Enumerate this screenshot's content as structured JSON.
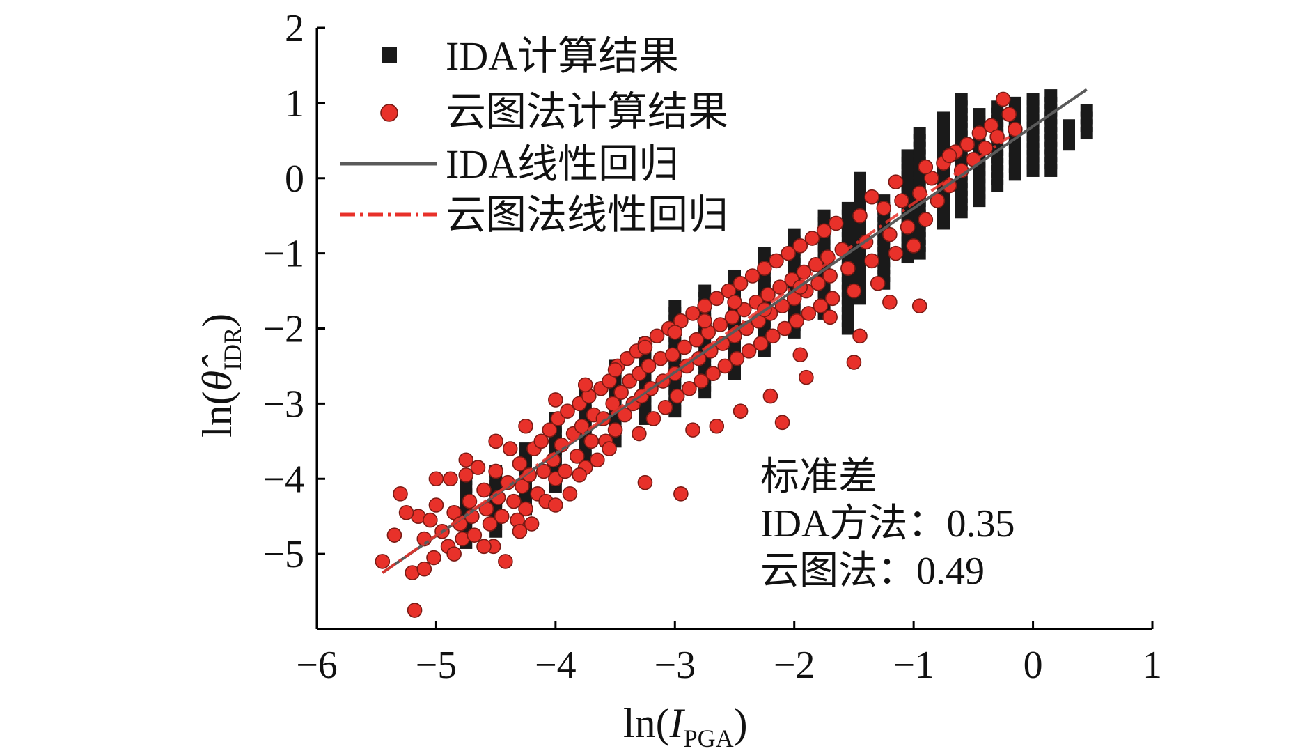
{
  "chart_data": {
    "type": "scatter",
    "title": "",
    "xlabel": {
      "prefix": "ln(",
      "var": "I",
      "sub": "PGA",
      "suffix": ")"
    },
    "ylabel": {
      "prefix": "ln(",
      "var": "θ̂",
      "sub": "IDR",
      "suffix": ")"
    },
    "xlim": [
      -6,
      1
    ],
    "ylim": [
      -6,
      2
    ],
    "xticks": [
      -6,
      -5,
      -4,
      -3,
      -2,
      -1,
      0,
      1
    ],
    "yticks": [
      -5,
      -4,
      -3,
      -2,
      -1,
      0,
      1,
      2
    ],
    "xtick_labels": [
      "−6",
      "−5",
      "−4",
      "−3",
      "−2",
      "−1",
      "0",
      "1"
    ],
    "ytick_labels": [
      "−5",
      "−4",
      "−3",
      "−2",
      "−1",
      "0",
      "1",
      "2"
    ],
    "grid": false,
    "legend_position": "top-left",
    "legend": [
      {
        "label": "IDA计算结果",
        "kind": "square",
        "color": "#1a1a1a"
      },
      {
        "label": "云图法计算结果",
        "kind": "circle",
        "color": "#e8312a"
      },
      {
        "label": "IDA线性回归",
        "kind": "line",
        "color": "#5a5a5a"
      },
      {
        "label": "云图法线性回归",
        "kind": "dashdot",
        "color": "#e8312a"
      }
    ],
    "annotation": {
      "title": "标准差",
      "lines": [
        "IDA方法：0.35",
        "云图法：0.49"
      ]
    },
    "series": [
      {
        "name": "IDA计算结果",
        "marker": "square",
        "color": "#1a1a1a",
        "columns": [
          {
            "x": -4.75,
            "y_min": -4.85,
            "y_max": -4.0
          },
          {
            "x": -4.5,
            "y_min": -4.7,
            "y_max": -3.9
          },
          {
            "x": -4.25,
            "y_min": -4.4,
            "y_max": -3.6
          },
          {
            "x": -4.0,
            "y_min": -4.1,
            "y_max": -3.2
          },
          {
            "x": -3.75,
            "y_min": -3.8,
            "y_max": -2.8
          },
          {
            "x": -3.5,
            "y_min": -3.5,
            "y_max": -2.5
          },
          {
            "x": -3.25,
            "y_min": -3.2,
            "y_max": -2.2
          },
          {
            "x": -3.0,
            "y_min": -3.1,
            "y_max": -1.7
          },
          {
            "x": -2.75,
            "y_min": -2.85,
            "y_max": -1.5
          },
          {
            "x": -2.5,
            "y_min": -2.6,
            "y_max": -1.3
          },
          {
            "x": -2.25,
            "y_min": -2.3,
            "y_max": -1.0
          },
          {
            "x": -2.0,
            "y_min": -2.05,
            "y_max": -0.75
          },
          {
            "x": -1.75,
            "y_min": -1.8,
            "y_max": -0.5
          },
          {
            "x": -1.55,
            "y_min": -2.0,
            "y_max": -0.4
          },
          {
            "x": -1.45,
            "y_min": -1.6,
            "y_max": 0.0
          },
          {
            "x": -1.25,
            "y_min": -1.4,
            "y_max": -0.3
          },
          {
            "x": -1.05,
            "y_min": -1.05,
            "y_max": 0.3
          },
          {
            "x": -0.95,
            "y_min": -1.0,
            "y_max": 0.6
          },
          {
            "x": -0.75,
            "y_min": -0.6,
            "y_max": 0.8
          },
          {
            "x": -0.6,
            "y_min": -0.45,
            "y_max": 1.05
          },
          {
            "x": -0.45,
            "y_min": -0.3,
            "y_max": 0.85
          },
          {
            "x": -0.3,
            "y_min": -0.1,
            "y_max": 0.95
          },
          {
            "x": -0.15,
            "y_min": 0.05,
            "y_max": 1.0
          },
          {
            "x": 0.0,
            "y_min": 0.1,
            "y_max": 1.05
          },
          {
            "x": 0.15,
            "y_min": 0.1,
            "y_max": 1.1
          },
          {
            "x": 0.3,
            "y_min": 0.45,
            "y_max": 0.7
          },
          {
            "x": 0.45,
            "y_min": 0.6,
            "y_max": 0.9
          }
        ]
      },
      {
        "name": "云图法计算结果",
        "marker": "circle",
        "color": "#e8312a",
        "points": [
          [
            -5.45,
            -5.1
          ],
          [
            -5.35,
            -4.75
          ],
          [
            -5.3,
            -4.2
          ],
          [
            -5.2,
            -5.25
          ],
          [
            -5.18,
            -5.75
          ],
          [
            -5.15,
            -4.5
          ],
          [
            -5.1,
            -4.8
          ],
          [
            -5.05,
            -4.55
          ],
          [
            -5.02,
            -5.05
          ],
          [
            -5.0,
            -4.35
          ],
          [
            -4.95,
            -4.7
          ],
          [
            -4.9,
            -4.9
          ],
          [
            -4.88,
            -4.0
          ],
          [
            -4.85,
            -4.45
          ],
          [
            -4.8,
            -4.6
          ],
          [
            -4.78,
            -4.8
          ],
          [
            -4.75,
            -3.95
          ],
          [
            -4.72,
            -4.3
          ],
          [
            -4.7,
            -4.5
          ],
          [
            -4.68,
            -4.75
          ],
          [
            -4.65,
            -3.85
          ],
          [
            -4.6,
            -4.15
          ],
          [
            -4.58,
            -4.4
          ],
          [
            -4.55,
            -4.6
          ],
          [
            -4.52,
            -4.9
          ],
          [
            -4.5,
            -3.9
          ],
          [
            -4.48,
            -4.25
          ],
          [
            -4.45,
            -4.5
          ],
          [
            -4.42,
            -5.1
          ],
          [
            -4.4,
            -4.05
          ],
          [
            -4.38,
            -3.6
          ],
          [
            -4.35,
            -4.3
          ],
          [
            -4.32,
            -4.55
          ],
          [
            -4.3,
            -3.8
          ],
          [
            -4.28,
            -4.1
          ],
          [
            -4.25,
            -4.4
          ],
          [
            -4.22,
            -3.95
          ],
          [
            -4.2,
            -4.6
          ],
          [
            -4.18,
            -3.6
          ],
          [
            -4.15,
            -4.2
          ],
          [
            -4.12,
            -3.5
          ],
          [
            -4.1,
            -3.9
          ],
          [
            -4.08,
            -4.3
          ],
          [
            -4.05,
            -3.35
          ],
          [
            -4.02,
            -3.75
          ],
          [
            -4.0,
            -4.0
          ],
          [
            -3.98,
            -3.2
          ],
          [
            -3.95,
            -3.55
          ],
          [
            -3.92,
            -3.9
          ],
          [
            -3.9,
            -3.1
          ],
          [
            -3.88,
            -4.2
          ],
          [
            -3.85,
            -3.4
          ],
          [
            -3.82,
            -3.7
          ],
          [
            -3.8,
            -3.0
          ],
          [
            -3.78,
            -3.3
          ],
          [
            -3.75,
            -3.85
          ],
          [
            -3.72,
            -2.9
          ],
          [
            -3.7,
            -3.5
          ],
          [
            -3.68,
            -3.15
          ],
          [
            -3.65,
            -3.75
          ],
          [
            -3.62,
            -2.8
          ],
          [
            -3.6,
            -3.2
          ],
          [
            -3.58,
            -3.5
          ],
          [
            -3.55,
            -2.7
          ],
          [
            -3.52,
            -3.0
          ],
          [
            -3.5,
            -3.35
          ],
          [
            -3.48,
            -2.5
          ],
          [
            -3.45,
            -2.85
          ],
          [
            -3.42,
            -3.15
          ],
          [
            -3.4,
            -2.4
          ],
          [
            -3.38,
            -2.7
          ],
          [
            -3.35,
            -3.0
          ],
          [
            -3.32,
            -2.3
          ],
          [
            -3.3,
            -2.6
          ],
          [
            -3.28,
            -2.9
          ],
          [
            -3.25,
            -2.2
          ],
          [
            -3.22,
            -2.5
          ],
          [
            -3.2,
            -2.8
          ],
          [
            -3.18,
            -3.2
          ],
          [
            -3.15,
            -2.1
          ],
          [
            -3.12,
            -2.4
          ],
          [
            -3.1,
            -2.7
          ],
          [
            -3.08,
            -3.05
          ],
          [
            -3.05,
            -2.0
          ],
          [
            -3.02,
            -2.35
          ],
          [
            -3.0,
            -2.6
          ],
          [
            -2.98,
            -2.9
          ],
          [
            -2.95,
            -1.9
          ],
          [
            -2.92,
            -2.25
          ],
          [
            -2.9,
            -2.5
          ],
          [
            -2.88,
            -2.8
          ],
          [
            -2.85,
            -1.8
          ],
          [
            -2.82,
            -2.15
          ],
          [
            -2.8,
            -2.4
          ],
          [
            -2.78,
            -2.7
          ],
          [
            -2.75,
            -1.7
          ],
          [
            -2.72,
            -2.05
          ],
          [
            -2.7,
            -2.3
          ],
          [
            -2.68,
            -2.6
          ],
          [
            -2.65,
            -1.6
          ],
          [
            -2.62,
            -1.95
          ],
          [
            -2.6,
            -2.2
          ],
          [
            -2.58,
            -2.5
          ],
          [
            -2.55,
            -1.5
          ],
          [
            -2.52,
            -1.85
          ],
          [
            -2.5,
            -2.1
          ],
          [
            -2.48,
            -2.4
          ],
          [
            -2.45,
            -1.4
          ],
          [
            -2.42,
            -1.75
          ],
          [
            -2.4,
            -2.0
          ],
          [
            -2.38,
            -2.3
          ],
          [
            -2.35,
            -1.3
          ],
          [
            -2.32,
            -1.65
          ],
          [
            -2.3,
            -1.9
          ],
          [
            -2.28,
            -2.2
          ],
          [
            -2.25,
            -1.2
          ],
          [
            -2.22,
            -1.55
          ],
          [
            -2.2,
            -1.8
          ],
          [
            -2.18,
            -2.1
          ],
          [
            -2.15,
            -1.1
          ],
          [
            -2.12,
            -1.45
          ],
          [
            -2.1,
            -1.7
          ],
          [
            -2.08,
            -2.0
          ],
          [
            -2.05,
            -1.0
          ],
          [
            -2.02,
            -1.35
          ],
          [
            -2.0,
            -1.6
          ],
          [
            -1.98,
            -1.9
          ],
          [
            -1.95,
            -0.9
          ],
          [
            -1.92,
            -1.25
          ],
          [
            -1.9,
            -1.5
          ],
          [
            -1.88,
            -1.8
          ],
          [
            -1.85,
            -0.8
          ],
          [
            -1.82,
            -1.15
          ],
          [
            -1.8,
            -1.4
          ],
          [
            -1.78,
            -1.7
          ],
          [
            -1.75,
            -0.7
          ],
          [
            -1.72,
            -1.05
          ],
          [
            -1.7,
            -1.3
          ],
          [
            -1.68,
            -1.6
          ],
          [
            -1.65,
            -0.6
          ],
          [
            -1.6,
            -0.95
          ],
          [
            -1.55,
            -1.2
          ],
          [
            -1.5,
            -1.5
          ],
          [
            -1.45,
            -0.5
          ],
          [
            -1.4,
            -0.85
          ],
          [
            -1.35,
            -1.1
          ],
          [
            -1.3,
            -1.4
          ],
          [
            -1.25,
            -0.4
          ],
          [
            -1.2,
            -0.75
          ],
          [
            -1.15,
            -1.0
          ],
          [
            -1.1,
            -0.3
          ],
          [
            -1.05,
            -0.65
          ],
          [
            -1.0,
            -0.9
          ],
          [
            -0.95,
            -0.2
          ],
          [
            -0.9,
            -0.55
          ],
          [
            -0.85,
            0.0
          ],
          [
            -0.8,
            -0.3
          ],
          [
            -0.75,
            0.2
          ],
          [
            -0.7,
            -0.1
          ],
          [
            -0.65,
            0.35
          ],
          [
            -0.6,
            0.1
          ],
          [
            -0.55,
            0.45
          ],
          [
            -0.5,
            0.25
          ],
          [
            -0.45,
            0.6
          ],
          [
            -0.4,
            0.4
          ],
          [
            -0.35,
            0.7
          ],
          [
            -0.3,
            0.55
          ],
          [
            -0.25,
            1.05
          ],
          [
            -0.2,
            0.85
          ],
          [
            -0.15,
            0.65
          ],
          [
            -2.1,
            -3.25
          ],
          [
            -2.95,
            -4.2
          ],
          [
            -3.25,
            -4.05
          ],
          [
            -1.9,
            -2.65
          ],
          [
            -1.5,
            -2.45
          ],
          [
            -1.95,
            -2.35
          ],
          [
            -2.2,
            -2.9
          ],
          [
            -2.45,
            -3.1
          ],
          [
            -2.65,
            -3.3
          ],
          [
            -2.85,
            -3.35
          ],
          [
            -3.3,
            -3.4
          ],
          [
            -3.55,
            -3.6
          ],
          [
            -3.8,
            -3.95
          ],
          [
            -4.0,
            -4.35
          ],
          [
            -4.3,
            -4.7
          ],
          [
            -4.6,
            -4.9
          ],
          [
            -4.85,
            -5.0
          ],
          [
            -5.1,
            -5.2
          ],
          [
            -1.2,
            -1.65
          ],
          [
            -0.95,
            -1.7
          ],
          [
            -1.45,
            -2.1
          ],
          [
            -1.7,
            -1.85
          ],
          [
            -1.95,
            -1.45
          ],
          [
            -2.25,
            -1.75
          ],
          [
            -2.5,
            -1.65
          ],
          [
            -2.75,
            -1.9
          ],
          [
            -3.0,
            -2.05
          ],
          [
            -3.25,
            -2.25
          ],
          [
            -3.5,
            -2.55
          ],
          [
            -3.75,
            -2.75
          ],
          [
            -4.0,
            -2.95
          ],
          [
            -4.25,
            -3.3
          ],
          [
            -4.5,
            -3.5
          ],
          [
            -4.75,
            -3.75
          ],
          [
            -5.0,
            -4.0
          ],
          [
            -5.25,
            -4.45
          ],
          [
            -1.35,
            -0.25
          ],
          [
            -1.15,
            -0.05
          ],
          [
            -0.9,
            0.15
          ],
          [
            -0.7,
            0.3
          ]
        ]
      }
    ],
    "regression": [
      {
        "name": "IDA线性回归",
        "x": [
          -5.45,
          0.45
        ],
        "y": [
          -5.25,
          1.18
        ]
      },
      {
        "name": "云图法线性回归",
        "x": [
          -5.45,
          -0.2
        ],
        "y": [
          -5.25,
          0.55
        ]
      }
    ]
  }
}
